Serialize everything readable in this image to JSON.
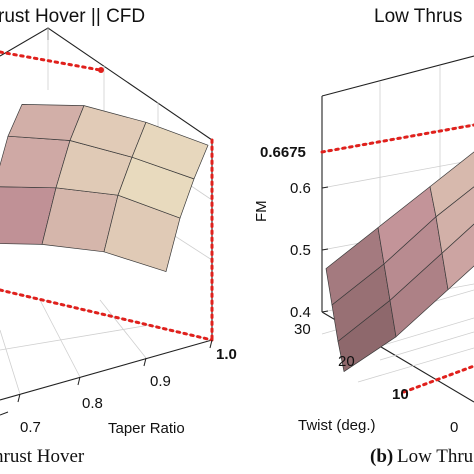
{
  "chart_data": [
    {
      "type": "surface",
      "title": "rust Hover || CFD",
      "xlabel": "Taper Ratio",
      "x_ticks": [
        "0.7",
        "0.8",
        "0.9",
        "1.0"
      ],
      "x_highlight": "1.0",
      "grid_x": [
        0.7,
        0.8,
        0.9,
        1.0
      ],
      "grid_y": [
        0,
        10,
        20,
        30
      ],
      "fm_values": [
        [
          0.56,
          0.6,
          0.63,
          0.64
        ],
        [
          0.59,
          0.63,
          0.66,
          0.665
        ],
        [
          0.61,
          0.645,
          0.66,
          0.667
        ],
        [
          0.6,
          0.64,
          0.655,
          0.66
        ]
      ],
      "optimum": {
        "taper": 1.0,
        "fm": 0.6675
      },
      "caption": "hrust Hover"
    },
    {
      "type": "surface",
      "title": "Low Thrus",
      "zlabel": "FM",
      "z_ticks": [
        "0.4",
        "0.5",
        "0.6",
        "0.6675"
      ],
      "z_highlight": "0.6675",
      "ylabel": "Twist (deg.)",
      "y_ticks": [
        "0",
        "10",
        "20",
        "30"
      ],
      "y_highlight": "10",
      "zlim": [
        0.4,
        0.7
      ],
      "caption_label": "(b)",
      "caption_text": "Low Thru"
    }
  ],
  "colors": {
    "optimum_line": "#e0201c",
    "surface_low": "#7e5a5e",
    "surface_mid": "#c4959a",
    "surface_high": "#f2ecc8"
  }
}
